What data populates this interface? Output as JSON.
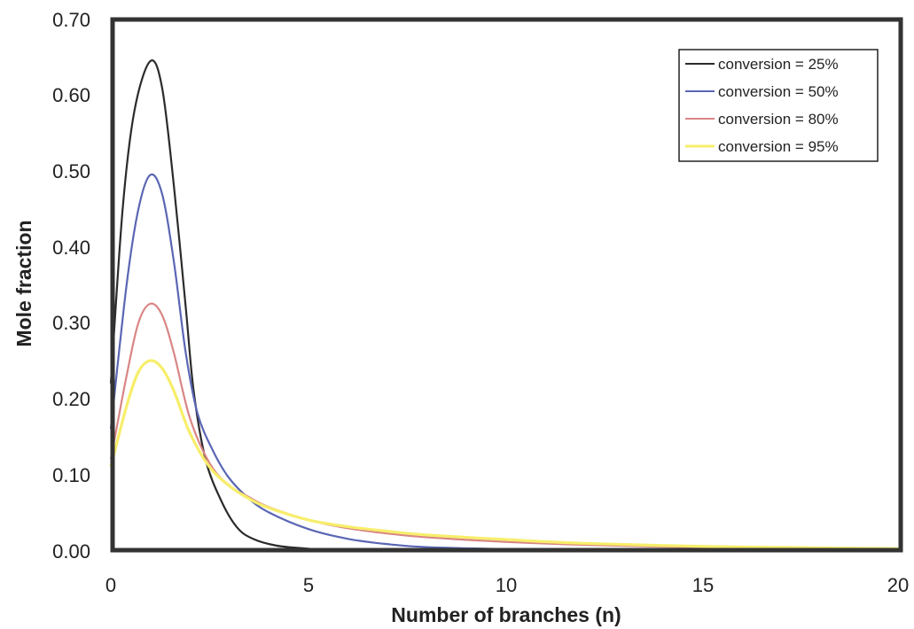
{
  "chart_data": {
    "type": "line",
    "title": "",
    "xlabel": "Number of branches (n)",
    "ylabel": "Mole fraction",
    "xlim": [
      0,
      20
    ],
    "ylim": [
      0,
      0.7
    ],
    "x_ticks": [
      "0",
      "5",
      "10",
      "15",
      "20"
    ],
    "y_ticks": [
      "0.00",
      "0.10",
      "0.20",
      "0.30",
      "0.40",
      "0.50",
      "0.60",
      "0.70"
    ],
    "grid": false,
    "legend_position": "top-right",
    "series": [
      {
        "name": "conversion = 25%",
        "color": "#2b2b2b",
        "points": [
          [
            0,
            0.22
          ],
          [
            0.3,
            0.45
          ],
          [
            0.6,
            0.58
          ],
          [
            1,
            0.645
          ],
          [
            1.3,
            0.61
          ],
          [
            1.6,
            0.48
          ],
          [
            1.9,
            0.32
          ],
          [
            2.1,
            0.21
          ],
          [
            2.4,
            0.12
          ],
          [
            2.8,
            0.065
          ],
          [
            3.2,
            0.03
          ],
          [
            3.6,
            0.015
          ],
          [
            4.2,
            0.006
          ],
          [
            5,
            0.002
          ],
          [
            6,
            0
          ],
          [
            20,
            0
          ]
        ]
      },
      {
        "name": "conversion = 50%",
        "color": "#5a66b4",
        "points": [
          [
            0,
            0.16
          ],
          [
            0.4,
            0.35
          ],
          [
            0.7,
            0.45
          ],
          [
            1,
            0.495
          ],
          [
            1.3,
            0.47
          ],
          [
            1.6,
            0.38
          ],
          [
            1.9,
            0.26
          ],
          [
            2.2,
            0.18
          ],
          [
            2.6,
            0.13
          ],
          [
            3,
            0.095
          ],
          [
            3.5,
            0.068
          ],
          [
            4,
            0.05
          ],
          [
            5,
            0.028
          ],
          [
            6,
            0.015
          ],
          [
            7,
            0.008
          ],
          [
            8,
            0.004
          ],
          [
            10,
            0.0015
          ],
          [
            12,
            0.0005
          ],
          [
            20,
            0
          ]
        ]
      },
      {
        "name": "conversion = 80%",
        "color": "#d98585",
        "points": [
          [
            0,
            0.12
          ],
          [
            0.4,
            0.23
          ],
          [
            0.7,
            0.3
          ],
          [
            1,
            0.325
          ],
          [
            1.3,
            0.31
          ],
          [
            1.6,
            0.26
          ],
          [
            2,
            0.175
          ],
          [
            2.5,
            0.115
          ],
          [
            3,
            0.085
          ],
          [
            3.5,
            0.07
          ],
          [
            4,
            0.057
          ],
          [
            5,
            0.04
          ],
          [
            6,
            0.029
          ],
          [
            7,
            0.022
          ],
          [
            8,
            0.017
          ],
          [
            10,
            0.011
          ],
          [
            12,
            0.007
          ],
          [
            15,
            0.0035
          ],
          [
            18,
            0.0015
          ],
          [
            20,
            0.001
          ]
        ]
      },
      {
        "name": "conversion = 95%",
        "color": "#f7ee6a",
        "points": [
          [
            0,
            0.11
          ],
          [
            0.4,
            0.19
          ],
          [
            0.7,
            0.235
          ],
          [
            1,
            0.25
          ],
          [
            1.3,
            0.24
          ],
          [
            1.6,
            0.21
          ],
          [
            2,
            0.155
          ],
          [
            2.5,
            0.11
          ],
          [
            3,
            0.085
          ],
          [
            3.5,
            0.068
          ],
          [
            4,
            0.056
          ],
          [
            5,
            0.04
          ],
          [
            6,
            0.031
          ],
          [
            7,
            0.025
          ],
          [
            8,
            0.02
          ],
          [
            10,
            0.014
          ],
          [
            12,
            0.009
          ],
          [
            15,
            0.005
          ],
          [
            18,
            0.003
          ],
          [
            20,
            0.002
          ]
        ]
      }
    ]
  }
}
